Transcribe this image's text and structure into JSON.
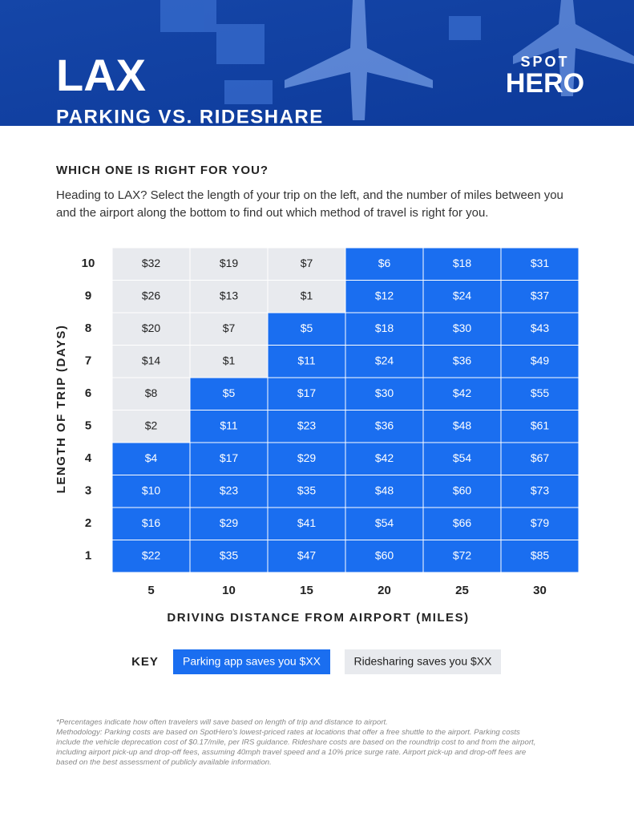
{
  "header": {
    "title": "LAX",
    "subtitle": "PARKING VS. RIDESHARE",
    "logo": [
      "SPOT",
      "HERO"
    ]
  },
  "intro": {
    "heading": "WHICH ONE IS RIGHT FOR YOU?",
    "lines": [
      "Heading to LAX? Select the length of your trip on the left, and the number of miles between you",
      "and the airport along the bottom to find out which method of travel is right for you."
    ]
  },
  "key": {
    "title": "KEY",
    "items": [
      {
        "label": "Parking app saves you $XX",
        "color": "#1a6ef0",
        "text_color": "#ffffff"
      },
      {
        "label": "Ridesharing saves you $XX",
        "color": "#e8eaee",
        "text_color": "#222222"
      }
    ]
  },
  "table": {
    "y_title": "LENGTH OF TRIP (DAYS)",
    "x_title": "DRIVING DISTANCE FROM AIRPORT (MILES)",
    "columns": [
      "5",
      "10",
      "15",
      "20",
      "25",
      "30"
    ],
    "rows": [
      {
        "label": "10",
        "cells": [
          {
            "text": "$32",
            "key": 1
          },
          {
            "text": "$19",
            "key": 1
          },
          {
            "text": "$7",
            "key": 1
          },
          {
            "text": "$6",
            "key": 0
          },
          {
            "text": "$18",
            "key": 0
          },
          {
            "text": "$31",
            "key": 0
          }
        ]
      },
      {
        "label": "9",
        "cells": [
          {
            "text": "$26",
            "key": 1
          },
          {
            "text": "$13",
            "key": 1
          },
          {
            "text": "$1",
            "key": 1
          },
          {
            "text": "$12",
            "key": 0
          },
          {
            "text": "$24",
            "key": 0
          },
          {
            "text": "$37",
            "key": 0
          }
        ]
      },
      {
        "label": "8",
        "cells": [
          {
            "text": "$20",
            "key": 1
          },
          {
            "text": "$7",
            "key": 1
          },
          {
            "text": "$5",
            "key": 0
          },
          {
            "text": "$18",
            "key": 0
          },
          {
            "text": "$30",
            "key": 0
          },
          {
            "text": "$43",
            "key": 0
          }
        ]
      },
      {
        "label": "7",
        "cells": [
          {
            "text": "$14",
            "key": 1
          },
          {
            "text": "$1",
            "key": 1
          },
          {
            "text": "$11",
            "key": 0
          },
          {
            "text": "$24",
            "key": 0
          },
          {
            "text": "$36",
            "key": 0
          },
          {
            "text": "$49",
            "key": 0
          }
        ]
      },
      {
        "label": "6",
        "cells": [
          {
            "text": "$8",
            "key": 1
          },
          {
            "text": "$5",
            "key": 0
          },
          {
            "text": "$17",
            "key": 0
          },
          {
            "text": "$30",
            "key": 0
          },
          {
            "text": "$42",
            "key": 0
          },
          {
            "text": "$55",
            "key": 0
          }
        ]
      },
      {
        "label": "5",
        "cells": [
          {
            "text": "$2",
            "key": 1
          },
          {
            "text": "$11",
            "key": 0
          },
          {
            "text": "$23",
            "key": 0
          },
          {
            "text": "$36",
            "key": 0
          },
          {
            "text": "$48",
            "key": 0
          },
          {
            "text": "$61",
            "key": 0
          }
        ]
      },
      {
        "label": "4",
        "cells": [
          {
            "text": "$4",
            "key": 0
          },
          {
            "text": "$17",
            "key": 0
          },
          {
            "text": "$29",
            "key": 0
          },
          {
            "text": "$42",
            "key": 0
          },
          {
            "text": "$54",
            "key": 0
          },
          {
            "text": "$67",
            "key": 0
          }
        ]
      },
      {
        "label": "3",
        "cells": [
          {
            "text": "$10",
            "key": 0
          },
          {
            "text": "$23",
            "key": 0
          },
          {
            "text": "$35",
            "key": 0
          },
          {
            "text": "$48",
            "key": 0
          },
          {
            "text": "$60",
            "key": 0
          },
          {
            "text": "$73",
            "key": 0
          }
        ]
      },
      {
        "label": "2",
        "cells": [
          {
            "text": "$16",
            "key": 0
          },
          {
            "text": "$29",
            "key": 0
          },
          {
            "text": "$41",
            "key": 0
          },
          {
            "text": "$54",
            "key": 0
          },
          {
            "text": "$66",
            "key": 0
          },
          {
            "text": "$79",
            "key": 0
          }
        ]
      },
      {
        "label": "1",
        "cells": [
          {
            "text": "$22",
            "key": 0
          },
          {
            "text": "$35",
            "key": 0
          },
          {
            "text": "$47",
            "key": 0
          },
          {
            "text": "$60",
            "key": 0
          },
          {
            "text": "$72",
            "key": 0
          },
          {
            "text": "$85",
            "key": 0
          }
        ]
      }
    ]
  },
  "footnote": [
    "*Percentages indicate how often travelers will save based on length of trip and distance to airport.",
    "Methodology: Parking costs are based on SpotHero's lowest-priced rates at locations that offer a free shuttle to the airport. Parking costs",
    "include the vehicle deprecation cost of $0.17/mile, per IRS guidance. Rideshare costs are based on the roundtrip cost to and from the airport,",
    "including airport pick-up and drop-off fees, assuming 40mph travel speed and a 10% price surge rate. Airport pick-up and drop-off fees are",
    "based on the best assessment of publicly available information."
  ]
}
